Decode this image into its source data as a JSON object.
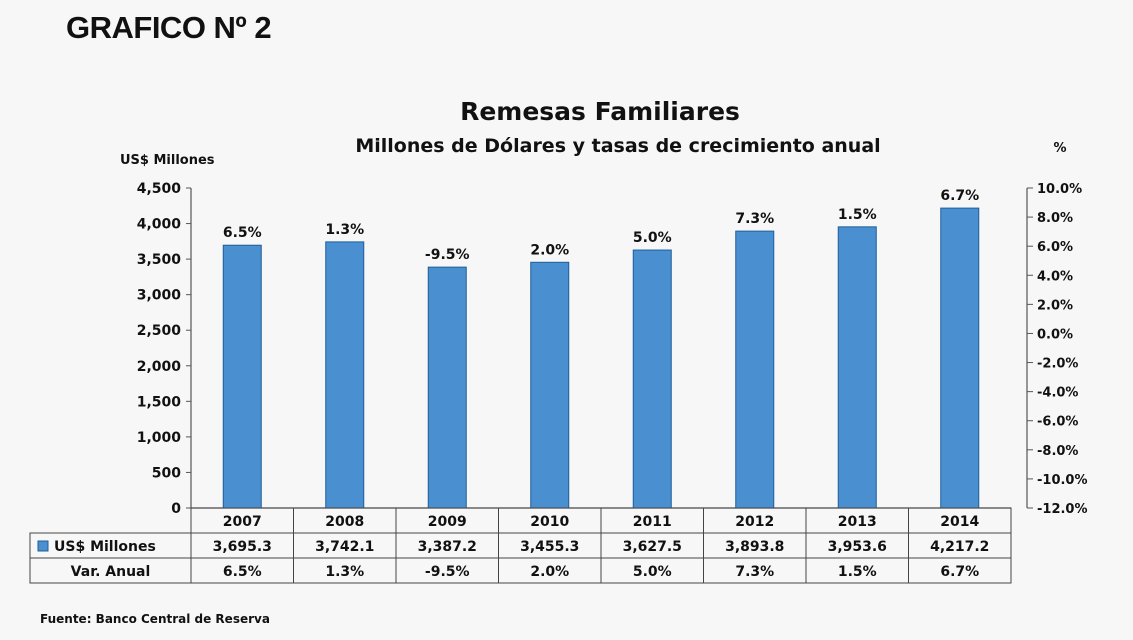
{
  "figure_label": "GRAFICO Nº 2",
  "footer": "Fuente: Banco Central de Reserva",
  "chart_data": {
    "type": "bar",
    "title": "Remesas Familiares",
    "subtitle": "Millones de Dólares y tasas de crecimiento anual",
    "ylabel": "US$ Millones",
    "y2label": "%",
    "categories": [
      "2007",
      "2008",
      "2009",
      "2010",
      "2011",
      "2012",
      "2013",
      "2014"
    ],
    "series": [
      {
        "name": "US$ Millones",
        "values": [
          3695.3,
          3742.1,
          3387.2,
          3455.3,
          3627.5,
          3893.8,
          3953.6,
          4217.2
        ],
        "color": "#4a90d0"
      }
    ],
    "bar_labels": [
      "6.5%",
      "1.3%",
      "-9.5%",
      "2.0%",
      "5.0%",
      "7.3%",
      "1.5%",
      "6.7%"
    ],
    "ylim": [
      0,
      4500
    ],
    "yticks": [
      "0",
      "500",
      "1,000",
      "1,500",
      "2,000",
      "2,500",
      "3,000",
      "3,500",
      "4,000",
      "4,500"
    ],
    "y2lim": [
      -12.0,
      10.0
    ],
    "y2ticks": [
      "-12.0%",
      "-10.0%",
      "-8.0%",
      "-6.0%",
      "-4.0%",
      "-2.0%",
      "0.0%",
      "2.0%",
      "4.0%",
      "6.0%",
      "8.0%",
      "10.0%"
    ],
    "grid": false,
    "table": {
      "rows": [
        {
          "label": "US$ Millones",
          "legend_marker": true,
          "values": [
            "3,695.3",
            "3,742.1",
            "3,387.2",
            "3,455.3",
            "3,627.5",
            "3,893.8",
            "3,953.6",
            "4,217.2"
          ]
        },
        {
          "label": "Var. Anual",
          "legend_marker": false,
          "values": [
            "6.5%",
            "1.3%",
            "-9.5%",
            "2.0%",
            "5.0%",
            "7.3%",
            "1.5%",
            "6.7%"
          ]
        }
      ]
    }
  }
}
